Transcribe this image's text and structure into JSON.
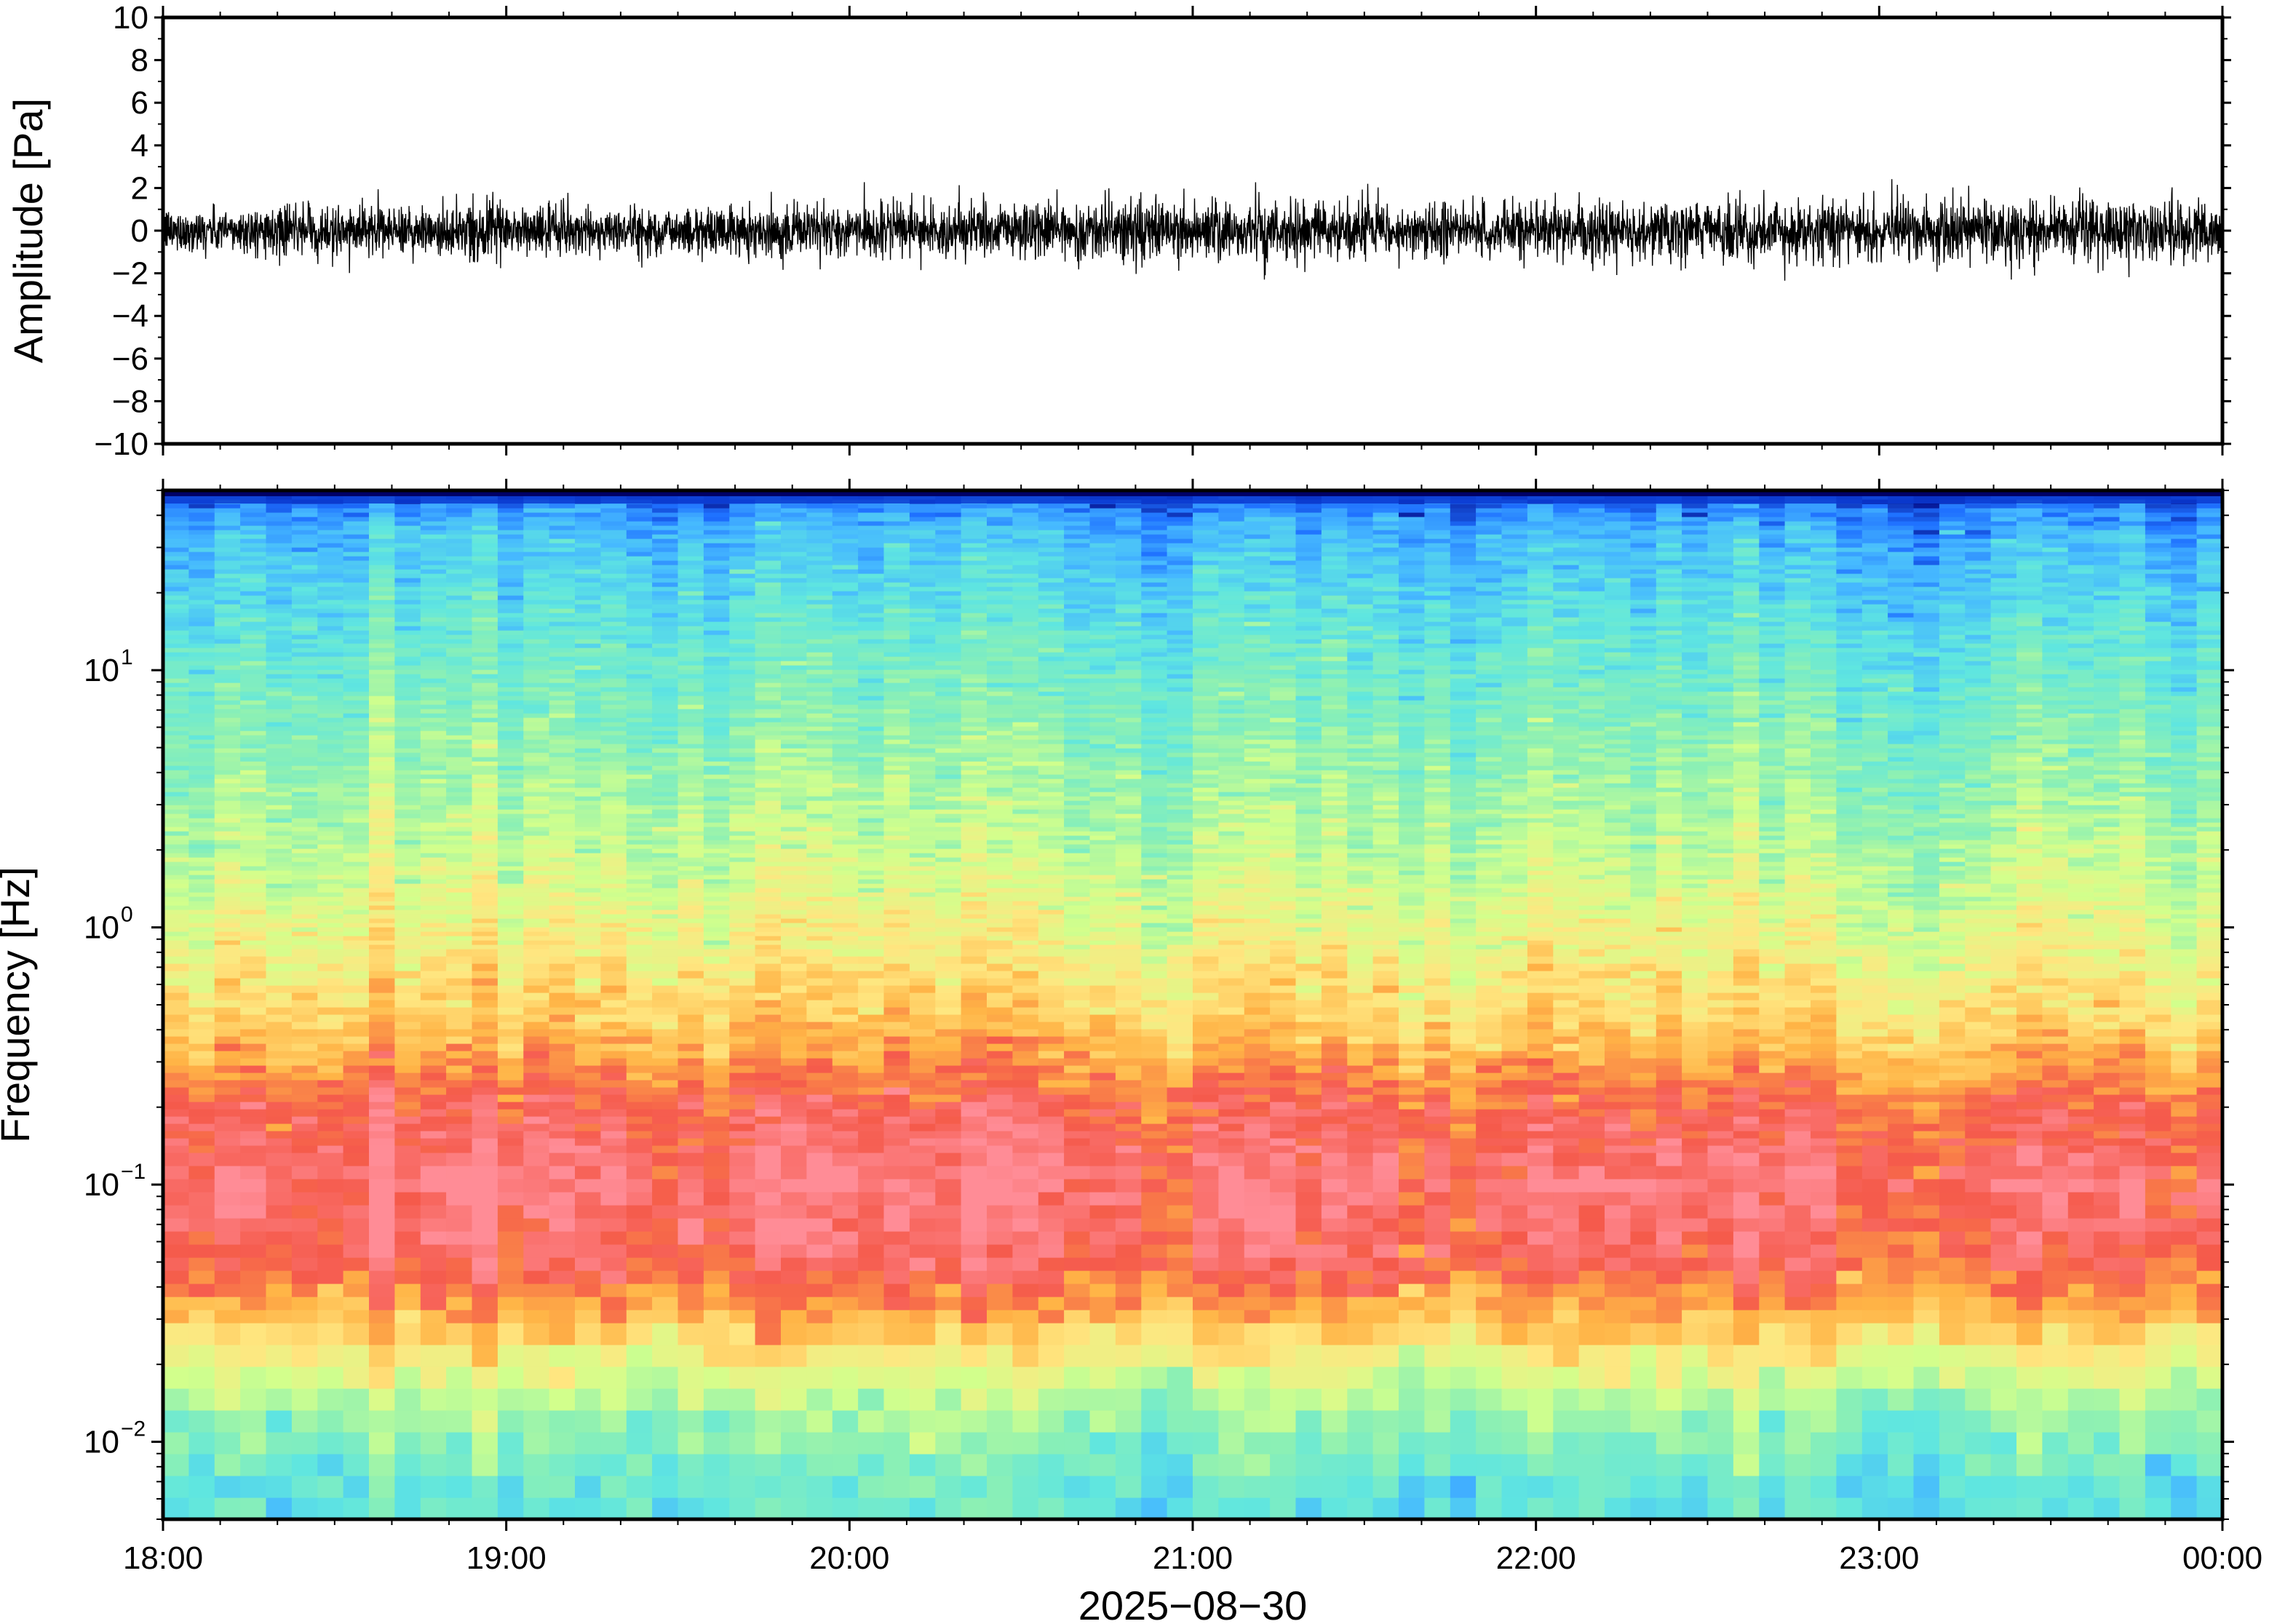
{
  "chart_data": [
    {
      "type": "line",
      "title": "",
      "ylabel": "Amplitude [Pa]",
      "xlabel": "",
      "ylim": [
        -10,
        10
      ],
      "yticks": [
        {
          "value": 10,
          "label": "10"
        },
        {
          "value": 8,
          "label": "8"
        },
        {
          "value": 6,
          "label": "6"
        },
        {
          "value": 4,
          "label": "4"
        },
        {
          "value": 2,
          "label": "2"
        },
        {
          "value": 0,
          "label": "0"
        },
        {
          "value": -2,
          "label": "−2"
        },
        {
          "value": -4,
          "label": "−4"
        },
        {
          "value": -6,
          "label": "−6"
        },
        {
          "value": -8,
          "label": "−8"
        },
        {
          "value": -10,
          "label": "−10"
        }
      ],
      "xlim": [
        "2025-08-30 18:00",
        "2025-08-31 00:00"
      ],
      "grid": false,
      "color": "#000000",
      "envelope": {
        "x": [
          "18:00",
          "18:30",
          "19:00",
          "19:30",
          "20:00",
          "20:30",
          "21:00",
          "21:30",
          "22:00",
          "22:30",
          "23:00",
          "23:30",
          "00:00"
        ],
        "typical_peak_pa": [
          1.2,
          1.3,
          1.4,
          1.3,
          1.4,
          1.6,
          1.7,
          1.6,
          1.5,
          1.5,
          1.7,
          1.6,
          1.8
        ],
        "max_pa": [
          1.9,
          2.0,
          2.1,
          1.9,
          2.0,
          2.4,
          3.1,
          2.3,
          2.5,
          2.0,
          2.7,
          2.1,
          2.2
        ],
        "min_pa": [
          -1.6,
          -2.3,
          -2.0,
          -1.9,
          -2.0,
          -3.4,
          -2.3,
          -2.5,
          -2.2,
          -2.1,
          -2.8,
          -2.4,
          -2.6
        ]
      }
    },
    {
      "type": "heatmap",
      "title": "",
      "ylabel": "Frequency [Hz]",
      "xlabel": "2025−08−30",
      "yscale": "log",
      "ylim": [
        0.005,
        50
      ],
      "xlim": [
        "2025-08-30 18:00",
        "2025-08-31 00:00"
      ],
      "colormap": [
        "#00007a",
        "#1e6fff",
        "#46b9ff",
        "#5fe6e0",
        "#8cf0b4",
        "#d2ff8c",
        "#ffe680",
        "#ffb446",
        "#f55a4b",
        "#ff8c96"
      ],
      "yticks": [
        {
          "value": 10,
          "base": "10",
          "exp": "1"
        },
        {
          "value": 1,
          "base": "10",
          "exp": "0"
        },
        {
          "value": 0.1,
          "base": "10",
          "exp": "−1"
        },
        {
          "value": 0.01,
          "base": "10",
          "exp": "−2"
        }
      ],
      "xticks": [
        "18:00",
        "19:00",
        "20:00",
        "21:00",
        "22:00",
        "23:00",
        "00:00"
      ],
      "bands": [
        {
          "freq_hz": 0.006,
          "level": 0.33,
          "color": "#5fe6e0"
        },
        {
          "freq_hz": 0.012,
          "level": 0.45,
          "color": "#8cf0b4"
        },
        {
          "freq_hz": 0.02,
          "level": 0.6,
          "color": "#d2ff8c"
        },
        {
          "freq_hz": 0.03,
          "level": 0.75,
          "color": "#ffb446"
        },
        {
          "freq_hz": 0.05,
          "level": 0.9,
          "color": "#f55a4b"
        },
        {
          "freq_hz": 0.1,
          "level": 0.95,
          "color": "#ff8c96"
        },
        {
          "freq_hz": 0.2,
          "level": 0.88,
          "color": "#f55a4b"
        },
        {
          "freq_hz": 0.4,
          "level": 0.72,
          "color": "#ffb446"
        },
        {
          "freq_hz": 0.8,
          "level": 0.62,
          "color": "#ffe680"
        },
        {
          "freq_hz": 2,
          "level": 0.52,
          "color": "#d2ff8c"
        },
        {
          "freq_hz": 6,
          "level": 0.42,
          "color": "#8cf0b4"
        },
        {
          "freq_hz": 15,
          "level": 0.33,
          "color": "#5fe6e0"
        },
        {
          "freq_hz": 35,
          "level": 0.22,
          "color": "#46b9ff"
        },
        {
          "freq_hz": 48,
          "level": 0.08,
          "color": "#1e6fff"
        }
      ]
    }
  ]
}
